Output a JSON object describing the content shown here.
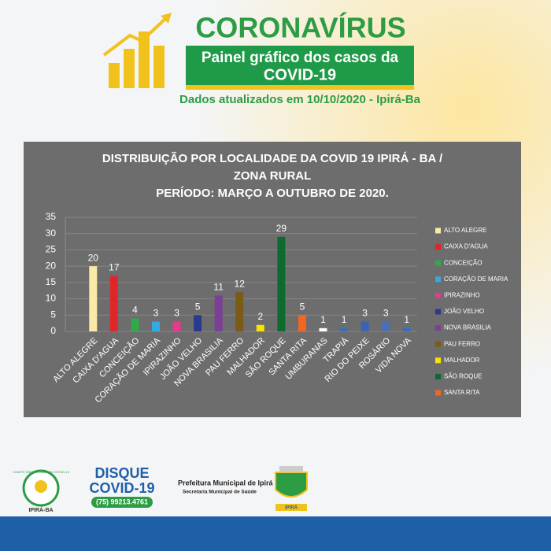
{
  "header": {
    "title": "CORONAVÍRUS",
    "banner_line1": "Painel gráfico dos casos da",
    "banner_line2": "COVID-19",
    "updated": "Dados atualizados em 10/10/2020 - Ipirá-Ba"
  },
  "chart_data": {
    "type": "bar",
    "title": [
      "DISTRIBUIÇÃO POR LOCALIDADE DA COVID 19 IPIRÁ - BA /",
      "ZONA RURAL",
      "PERÍODO: MARÇO  A OUTUBRO DE 2020."
    ],
    "categories": [
      "ALTO ALEGRE",
      "CAIXA D'AGUA",
      "CONCEIÇÃO",
      "CORAÇÃO DE MARIA",
      "IPIRAZINHO",
      "JOÃO VELHO",
      "NOVA BRASILIA",
      "PAU FERRO",
      "MALHADOR",
      "SÃO ROQUE",
      "SANTA RITA",
      "UMBURANAS",
      "TRAPIÁ",
      "RIO DO PEIXE",
      "ROSÁRIO",
      "VIDA NOVA"
    ],
    "values": [
      20,
      17,
      4,
      3,
      3,
      5,
      11,
      12,
      2,
      29,
      5,
      1,
      1,
      3,
      3,
      1
    ],
    "colors": [
      "#fbe9a8",
      "#e0262b",
      "#2eaa4a",
      "#36a9e0",
      "#e53a8f",
      "#2b3990",
      "#7b3f98",
      "#7a5c16",
      "#f5e500",
      "#0d6b2f",
      "#f26522",
      "#ffffff",
      "#3b6fb6",
      "#3d63b0",
      "#4a6fb8",
      "#3a6cc0"
    ],
    "legend": [
      "ALTO ALEGRE",
      "CAIXA D'AGUA",
      "CONCEIÇÃO",
      "CORAÇÃO DE MARIA",
      "IPIRAZINHO",
      "JOÃO VELHO",
      "NOVA BRASILIA",
      "PAU FERRO",
      "MALHADOR",
      "SÃO ROQUE",
      "SANTA RITA"
    ],
    "ylim": [
      0,
      35
    ],
    "yticks": [
      0,
      5,
      10,
      15,
      20,
      25,
      30,
      35
    ],
    "grid": true
  },
  "footer": {
    "committee": "COMITÊ ENFRENTAMENTO COVID-19",
    "committee_city": "IPIRÁ-BA",
    "disque": "DISQUE",
    "disque_covid": "COVID-19",
    "phone": "(75) 99213.4761",
    "prefeitura": "Prefeitura Municipal de Ipirá",
    "secretaria": "Secretaria Municipal de Saúde",
    "crest_label": "IPIRÁ"
  }
}
